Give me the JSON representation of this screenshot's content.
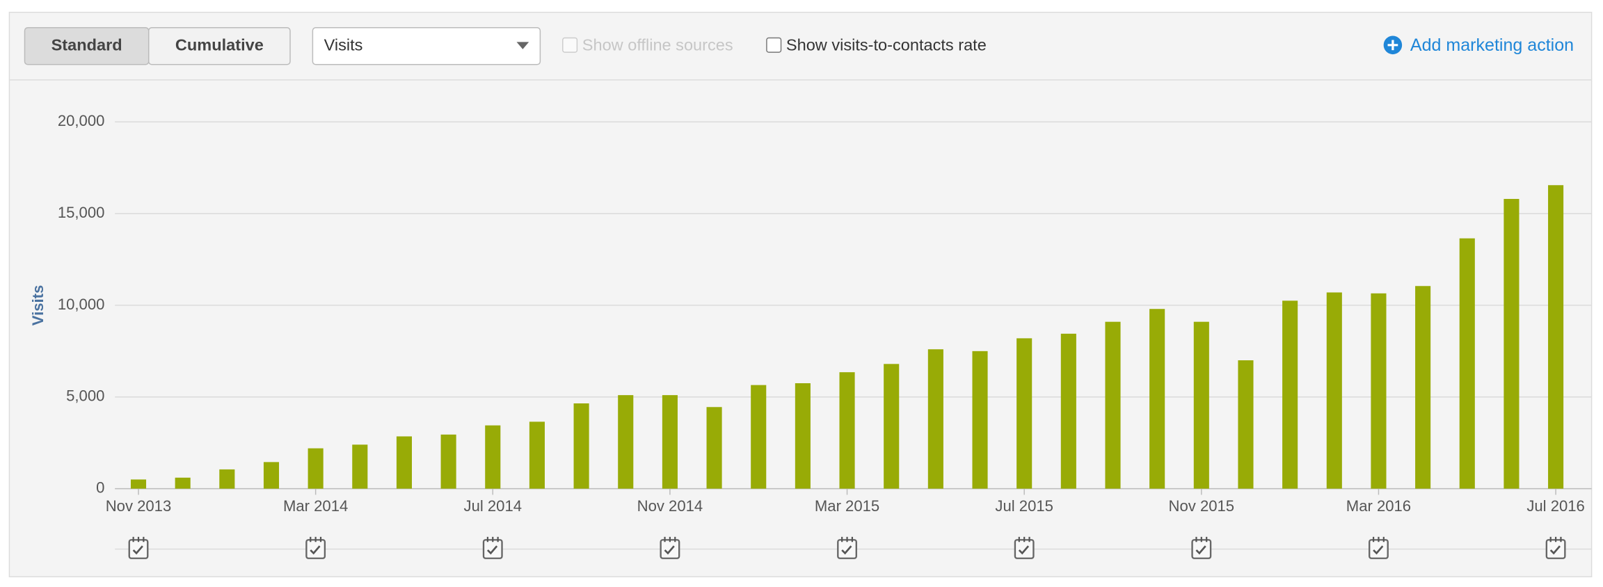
{
  "toolbar": {
    "buttons": [
      "Standard",
      "Cumulative"
    ],
    "metric_select": "Visits",
    "checkboxes": [
      "Show offline sources",
      "Show visits-to-contacts rate"
    ],
    "action": "Add marketing action"
  },
  "chart_data": {
    "type": "bar",
    "y_axis_label": "Visits",
    "categories": [
      "Nov 2013",
      null,
      null,
      null,
      "Mar 2014",
      null,
      null,
      null,
      "Jul 2014",
      null,
      null,
      null,
      "Nov 2014",
      null,
      null,
      null,
      "Mar 2015",
      null,
      null,
      null,
      "Jul 2015",
      null,
      null,
      null,
      "Nov 2015",
      null,
      null,
      null,
      "Mar 2016",
      null,
      null,
      null,
      "Jul 2016"
    ],
    "values": [
      500,
      600,
      1050,
      1450,
      2200,
      2400,
      2850,
      2950,
      3450,
      3650,
      4650,
      5100,
      5100,
      4450,
      5650,
      5750,
      6350,
      6800,
      7600,
      7500,
      8200,
      8450,
      9100,
      9800,
      9100,
      7000,
      10250,
      10700,
      10650,
      11050,
      13650,
      15800,
      16550
    ],
    "color": "#98ab06",
    "ylim": [
      0,
      20000
    ],
    "yticks": [
      0,
      {
        "value": 5000,
        "label": "5,000"
      },
      {
        "value": 10000,
        "label": "10,000"
      },
      {
        "value": 15000,
        "label": "15,000"
      },
      {
        "value": 20000,
        "label": "20,000"
      }
    ],
    "grid": true
  }
}
